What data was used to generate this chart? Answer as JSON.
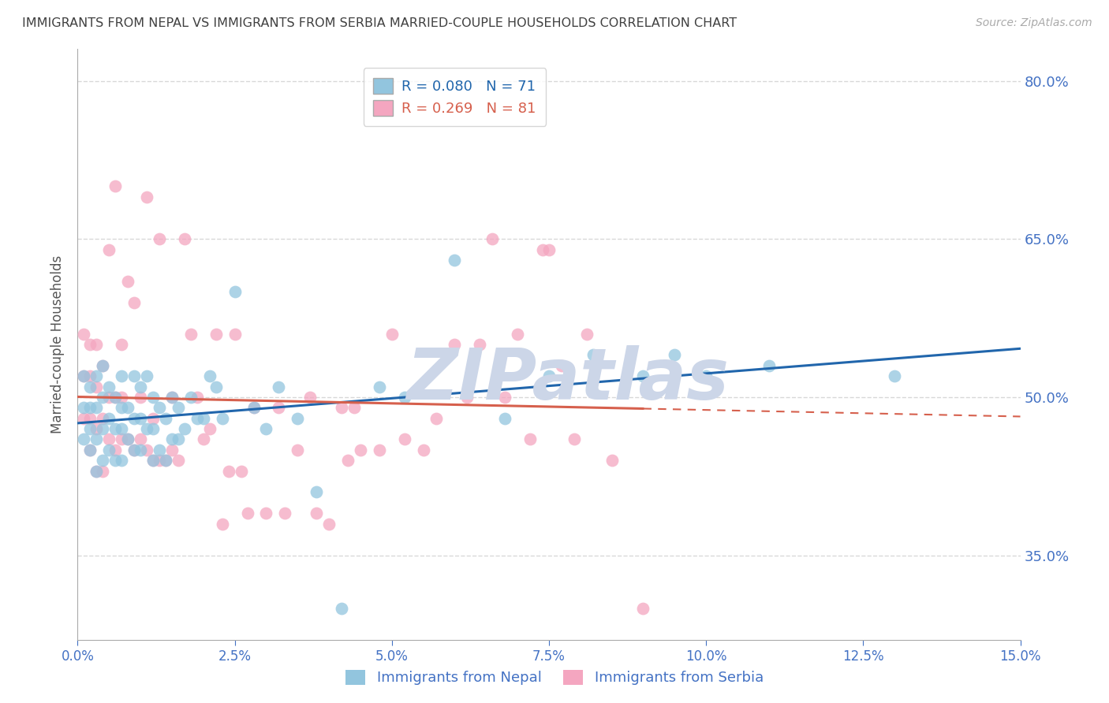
{
  "title": "IMMIGRANTS FROM NEPAL VS IMMIGRANTS FROM SERBIA MARRIED-COUPLE HOUSEHOLDS CORRELATION CHART",
  "source": "Source: ZipAtlas.com",
  "ylabel": "Married-couple Households",
  "legend_label_nepal": "Immigrants from Nepal",
  "legend_label_serbia": "Immigrants from Serbia",
  "R_nepal": 0.08,
  "N_nepal": 71,
  "R_serbia": 0.269,
  "N_serbia": 81,
  "color_nepal": "#92c5de",
  "color_serbia": "#f4a6c0",
  "trendline_color_nepal": "#2166ac",
  "trendline_color_serbia": "#d6604d",
  "xlim": [
    0.0,
    0.15
  ],
  "ylim": [
    0.27,
    0.83
  ],
  "yticks": [
    0.35,
    0.5,
    0.65,
    0.8
  ],
  "xticks": [
    0.0,
    0.025,
    0.05,
    0.075,
    0.1,
    0.125,
    0.15
  ],
  "nepal_x": [
    0.001,
    0.001,
    0.001,
    0.002,
    0.002,
    0.002,
    0.002,
    0.003,
    0.003,
    0.003,
    0.003,
    0.004,
    0.004,
    0.004,
    0.004,
    0.005,
    0.005,
    0.005,
    0.006,
    0.006,
    0.006,
    0.007,
    0.007,
    0.007,
    0.007,
    0.008,
    0.008,
    0.009,
    0.009,
    0.009,
    0.01,
    0.01,
    0.01,
    0.011,
    0.011,
    0.012,
    0.012,
    0.012,
    0.013,
    0.013,
    0.014,
    0.014,
    0.015,
    0.015,
    0.016,
    0.016,
    0.017,
    0.018,
    0.019,
    0.02,
    0.021,
    0.022,
    0.023,
    0.025,
    0.028,
    0.03,
    0.032,
    0.035,
    0.038,
    0.042,
    0.048,
    0.052,
    0.06,
    0.068,
    0.075,
    0.082,
    0.09,
    0.095,
    0.1,
    0.11,
    0.13
  ],
  "nepal_y": [
    0.46,
    0.49,
    0.52,
    0.45,
    0.47,
    0.49,
    0.51,
    0.43,
    0.46,
    0.49,
    0.52,
    0.44,
    0.47,
    0.5,
    0.53,
    0.45,
    0.48,
    0.51,
    0.44,
    0.47,
    0.5,
    0.44,
    0.47,
    0.49,
    0.52,
    0.46,
    0.49,
    0.45,
    0.48,
    0.52,
    0.45,
    0.48,
    0.51,
    0.47,
    0.52,
    0.44,
    0.47,
    0.5,
    0.45,
    0.49,
    0.44,
    0.48,
    0.46,
    0.5,
    0.46,
    0.49,
    0.47,
    0.5,
    0.48,
    0.48,
    0.52,
    0.51,
    0.48,
    0.6,
    0.49,
    0.47,
    0.51,
    0.48,
    0.41,
    0.3,
    0.51,
    0.5,
    0.63,
    0.48,
    0.52,
    0.54,
    0.52,
    0.54,
    0.52,
    0.53,
    0.52
  ],
  "serbia_x": [
    0.001,
    0.001,
    0.001,
    0.002,
    0.002,
    0.002,
    0.002,
    0.003,
    0.003,
    0.003,
    0.003,
    0.004,
    0.004,
    0.004,
    0.005,
    0.005,
    0.005,
    0.006,
    0.006,
    0.006,
    0.007,
    0.007,
    0.007,
    0.008,
    0.008,
    0.009,
    0.009,
    0.01,
    0.01,
    0.011,
    0.011,
    0.012,
    0.012,
    0.013,
    0.013,
    0.014,
    0.015,
    0.015,
    0.016,
    0.017,
    0.018,
    0.019,
    0.02,
    0.021,
    0.022,
    0.023,
    0.024,
    0.025,
    0.026,
    0.027,
    0.028,
    0.03,
    0.032,
    0.033,
    0.035,
    0.037,
    0.038,
    0.04,
    0.042,
    0.043,
    0.044,
    0.045,
    0.048,
    0.05,
    0.052,
    0.055,
    0.057,
    0.06,
    0.062,
    0.064,
    0.066,
    0.068,
    0.07,
    0.072,
    0.074,
    0.075,
    0.077,
    0.079,
    0.081,
    0.085,
    0.09
  ],
  "serbia_y": [
    0.48,
    0.52,
    0.56,
    0.45,
    0.48,
    0.52,
    0.55,
    0.43,
    0.47,
    0.51,
    0.55,
    0.43,
    0.48,
    0.53,
    0.46,
    0.5,
    0.64,
    0.45,
    0.5,
    0.7,
    0.46,
    0.5,
    0.55,
    0.46,
    0.61,
    0.45,
    0.59,
    0.46,
    0.5,
    0.45,
    0.69,
    0.44,
    0.48,
    0.44,
    0.65,
    0.44,
    0.45,
    0.5,
    0.44,
    0.65,
    0.56,
    0.5,
    0.46,
    0.47,
    0.56,
    0.38,
    0.43,
    0.56,
    0.43,
    0.39,
    0.49,
    0.39,
    0.49,
    0.39,
    0.45,
    0.5,
    0.39,
    0.38,
    0.49,
    0.44,
    0.49,
    0.45,
    0.45,
    0.56,
    0.46,
    0.45,
    0.48,
    0.55,
    0.5,
    0.55,
    0.65,
    0.5,
    0.56,
    0.46,
    0.64,
    0.64,
    0.53,
    0.46,
    0.56,
    0.44,
    0.3
  ],
  "background_color": "#ffffff",
  "grid_color": "#d8d8d8",
  "watermark": "ZIPatlas",
  "watermark_color": "#ccd6e8",
  "tick_label_color": "#4472c4",
  "title_color": "#404040",
  "title_fontsize": 11.5,
  "axis_label_color": "#555555"
}
